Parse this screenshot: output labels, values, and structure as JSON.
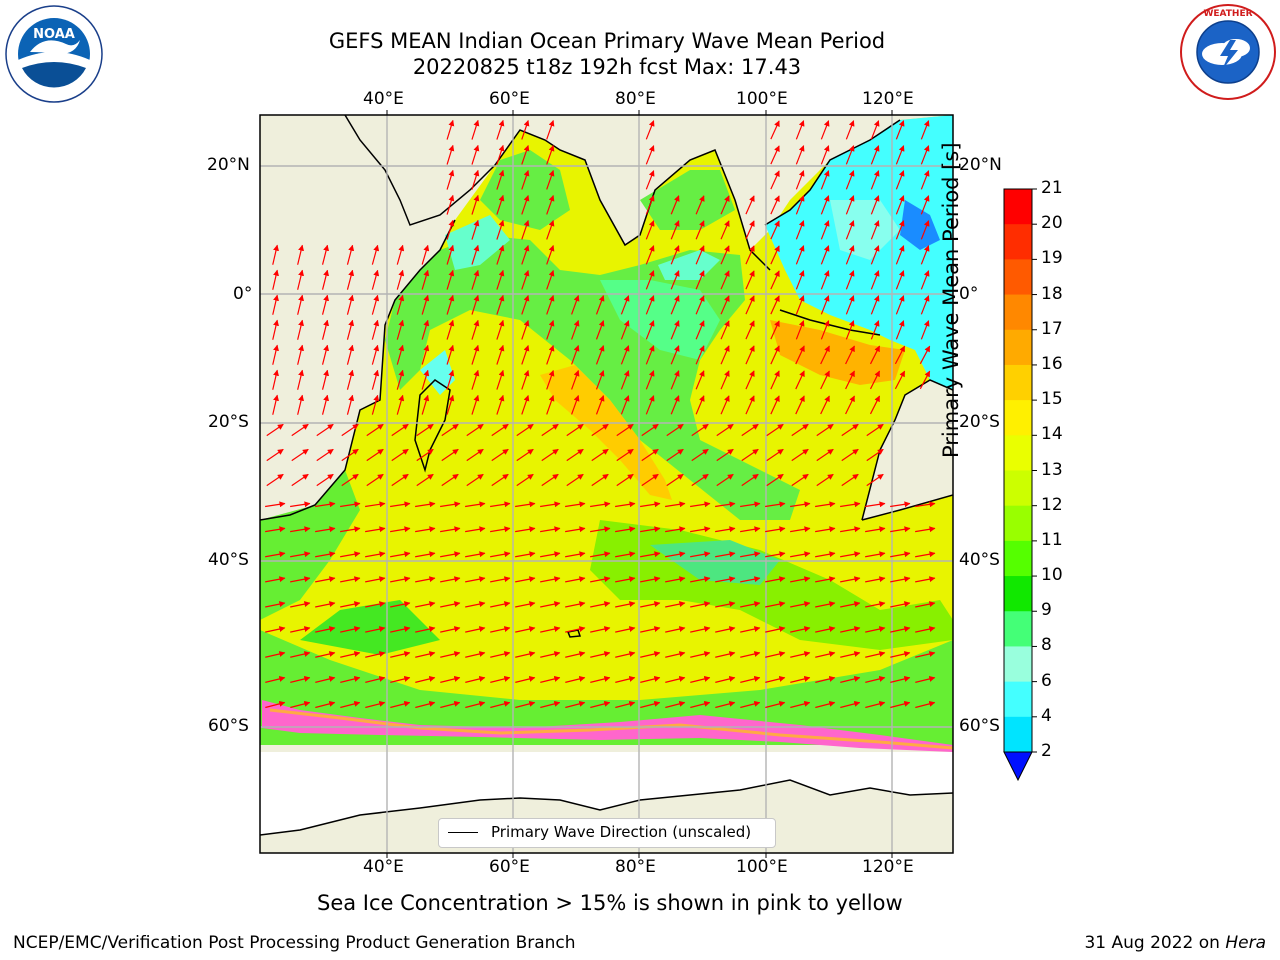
{
  "title_line1": "GEFS MEAN Indian Ocean Primary Wave Mean Period",
  "title_line2": "20220825 t18z 192h fcst   Max: 17.43",
  "lon_ticks": [
    "40°E",
    "60°E",
    "80°E",
    "100°E",
    "120°E"
  ],
  "lat_ticks": [
    "20°N",
    "0°",
    "20°S",
    "40°S",
    "60°S"
  ],
  "colorbar": {
    "title": "Primary Wave Mean Period [s]",
    "ticks": [
      "21",
      "20",
      "19",
      "18",
      "17",
      "16",
      "15",
      "14",
      "13",
      "12",
      "11",
      "10",
      "9",
      "8",
      "6",
      "4",
      "2"
    ],
    "colors": [
      "#ff0000",
      "#ff2d00",
      "#ff5a00",
      "#ff8800",
      "#ffaa00",
      "#ffd000",
      "#fff000",
      "#eaff00",
      "#ccff00",
      "#99ff00",
      "#55ff00",
      "#11e800",
      "#44ff77",
      "#99ffdd",
      "#44ffff",
      "#00e4ff",
      "#0077ff"
    ],
    "extend_color": "#0010ff"
  },
  "legend": {
    "label": "Primary Wave Direction (unscaled)"
  },
  "note": "Sea Ice Concentration > 15% is shown in pink to yellow",
  "footer_left": "NCEP/EMC/Verification Post Processing Product Generation Branch",
  "footer_right_date": "31 Aug 2022 on ",
  "footer_right_host": "Hera",
  "logos": {
    "left": "NOAA",
    "right": "National Weather Service"
  },
  "colors": {
    "land": "#efefdc",
    "arrow": "#ff0000"
  }
}
